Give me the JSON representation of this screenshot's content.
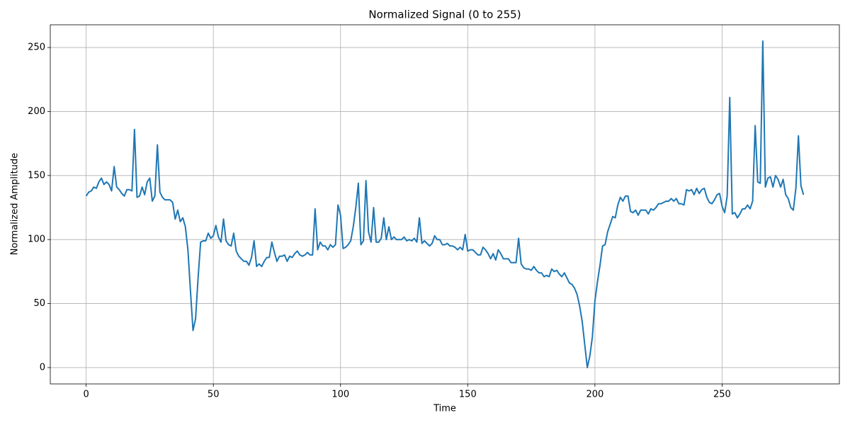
{
  "chart_data": {
    "type": "line",
    "title": "Normalized Signal (0 to 255)",
    "x_label": "Time",
    "y_label": "Normalized Amplitude",
    "color": "#1f77b4",
    "grid": true,
    "xlim": [
      -14.1,
      296.1
    ],
    "ylim": [
      -12.75,
      267.75
    ],
    "xticks": [
      0,
      50,
      100,
      150,
      200,
      250
    ],
    "yticks": [
      0,
      50,
      100,
      150,
      200,
      250
    ],
    "x": [
      0,
      1,
      2,
      3,
      4,
      5,
      6,
      7,
      8,
      9,
      10,
      11,
      12,
      13,
      14,
      15,
      16,
      17,
      18,
      19,
      20,
      21,
      22,
      23,
      24,
      25,
      26,
      27,
      28,
      29,
      30,
      31,
      32,
      33,
      34,
      35,
      36,
      37,
      38,
      39,
      40,
      41,
      42,
      43,
      44,
      45,
      46,
      47,
      48,
      49,
      50,
      51,
      52,
      53,
      54,
      55,
      56,
      57,
      58,
      59,
      60,
      61,
      62,
      63,
      64,
      65,
      66,
      67,
      68,
      69,
      70,
      71,
      72,
      73,
      74,
      75,
      76,
      77,
      78,
      79,
      80,
      81,
      82,
      83,
      84,
      85,
      86,
      87,
      88,
      89,
      90,
      91,
      92,
      93,
      94,
      95,
      96,
      97,
      98,
      99,
      100,
      101,
      102,
      103,
      104,
      105,
      106,
      107,
      108,
      109,
      110,
      111,
      112,
      113,
      114,
      115,
      116,
      117,
      118,
      119,
      120,
      121,
      122,
      123,
      124,
      125,
      126,
      127,
      128,
      129,
      130,
      131,
      132,
      133,
      134,
      135,
      136,
      137,
      138,
      139,
      140,
      141,
      142,
      143,
      144,
      145,
      146,
      147,
      148,
      149,
      150,
      151,
      152,
      153,
      154,
      155,
      156,
      157,
      158,
      159,
      160,
      161,
      162,
      163,
      164,
      165,
      166,
      167,
      168,
      169,
      170,
      171,
      172,
      173,
      174,
      175,
      176,
      177,
      178,
      179,
      180,
      181,
      182,
      183,
      184,
      185,
      186,
      187,
      188,
      189,
      190,
      191,
      192,
      193,
      194,
      195,
      196,
      197,
      198,
      199,
      200,
      201,
      202,
      203,
      204,
      205,
      206,
      207,
      208,
      209,
      210,
      211,
      212,
      213,
      214,
      215,
      216,
      217,
      218,
      219,
      220,
      221,
      222,
      223,
      224,
      225,
      226,
      227,
      228,
      229,
      230,
      231,
      232,
      233,
      234,
      235,
      236,
      237,
      238,
      239,
      240,
      241,
      242,
      243,
      244,
      245,
      246,
      247,
      248,
      249,
      250,
      251,
      252,
      253,
      254,
      255,
      256,
      257,
      258,
      259,
      260,
      261,
      262,
      263,
      264,
      265,
      266,
      267,
      268,
      269,
      270,
      271,
      272,
      273,
      274,
      275,
      276,
      277,
      278,
      279,
      280,
      281,
      282
    ],
    "values": [
      134,
      137,
      138,
      141,
      140,
      145,
      148,
      143,
      145,
      143,
      138,
      157,
      141,
      139,
      136,
      134,
      139,
      139,
      138,
      186,
      133,
      134,
      141,
      135,
      145,
      148,
      130,
      134,
      174,
      137,
      133,
      131,
      131,
      131,
      129,
      116,
      123,
      114,
      117,
      110,
      92,
      60,
      29,
      38,
      70,
      98,
      99,
      99,
      105,
      101,
      103,
      111,
      102,
      98,
      116,
      99,
      96,
      95,
      105,
      91,
      87,
      85,
      83,
      83,
      80,
      86,
      99,
      79,
      81,
      79,
      83,
      86,
      86,
      98,
      90,
      83,
      87,
      87,
      88,
      83,
      87,
      86,
      89,
      91,
      88,
      87,
      88,
      90,
      88,
      88,
      124,
      92,
      98,
      95,
      95,
      92,
      96,
      94,
      96,
      127,
      119,
      93,
      94,
      96,
      99,
      110,
      125,
      144,
      96,
      99,
      146,
      106,
      98,
      125,
      98,
      98,
      101,
      117,
      100,
      110,
      100,
      102,
      100,
      100,
      100,
      102,
      99,
      100,
      99,
      101,
      98,
      117,
      97,
      99,
      97,
      95,
      97,
      103,
      100,
      100,
      96,
      96,
      97,
      95,
      95,
      94,
      92,
      94,
      92,
      104,
      91,
      92,
      92,
      90,
      88,
      88,
      94,
      92,
      89,
      85,
      89,
      84,
      92,
      89,
      85,
      85,
      85,
      82,
      82,
      82,
      101,
      81,
      78,
      77,
      77,
      76,
      79,
      76,
      74,
      74,
      71,
      72,
      71,
      77,
      75,
      76,
      73,
      71,
      74,
      70,
      66,
      65,
      62,
      57,
      48,
      36,
      18,
      0,
      9,
      24,
      52,
      67,
      80,
      95,
      96,
      106,
      112,
      118,
      117,
      127,
      133,
      130,
      134,
      134,
      122,
      121,
      123,
      119,
      123,
      123,
      123,
      120,
      124,
      123,
      125,
      128,
      128,
      129,
      130,
      130,
      132,
      130,
      132,
      128,
      128,
      127,
      139,
      138,
      139,
      135,
      140,
      136,
      139,
      140,
      133,
      129,
      128,
      131,
      135,
      136,
      126,
      121,
      134,
      211,
      120,
      121,
      117,
      120,
      124,
      124,
      127,
      124,
      130,
      189,
      145,
      144,
      255,
      141,
      148,
      149,
      141,
      150,
      147,
      141,
      147,
      135,
      132,
      125,
      123,
      140,
      181,
      142,
      135
    ]
  }
}
